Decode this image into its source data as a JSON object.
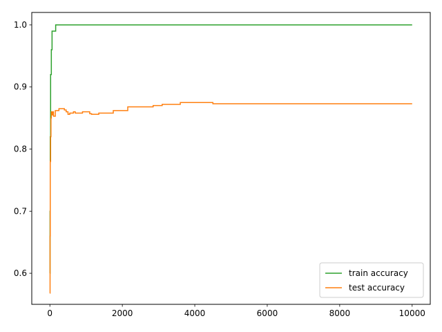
{
  "chart_data": {
    "type": "line",
    "title": "",
    "xlabel": "",
    "ylabel": "",
    "xlim": [
      -500,
      10500
    ],
    "ylim": [
      0.55,
      1.02
    ],
    "xticks": [
      0,
      2000,
      4000,
      6000,
      8000,
      10000
    ],
    "xtick_labels": [
      "0",
      "2000",
      "4000",
      "6000",
      "8000",
      "10000"
    ],
    "yticks": [
      0.6,
      0.7,
      0.8,
      0.9,
      1.0
    ],
    "ytick_labels": [
      "0.6",
      "0.7",
      "0.8",
      "0.9",
      "1.0"
    ],
    "grid": false,
    "legend_position": "lower-right",
    "series": [
      {
        "name": "train accuracy",
        "color": "#2ca02c",
        "step": true,
        "points": [
          [
            0,
            0.6
          ],
          [
            5,
            0.7
          ],
          [
            10,
            0.82
          ],
          [
            20,
            0.92
          ],
          [
            40,
            0.96
          ],
          [
            60,
            0.99
          ],
          [
            150,
            0.99
          ],
          [
            160,
            1.0
          ],
          [
            10000,
            1.0
          ]
        ]
      },
      {
        "name": "test accuracy",
        "color": "#ff7f0e",
        "step": true,
        "points": [
          [
            0,
            0.568
          ],
          [
            5,
            0.66
          ],
          [
            10,
            0.78
          ],
          [
            20,
            0.82
          ],
          [
            30,
            0.85
          ],
          [
            40,
            0.86
          ],
          [
            60,
            0.855
          ],
          [
            80,
            0.86
          ],
          [
            100,
            0.853
          ],
          [
            150,
            0.862
          ],
          [
            250,
            0.865
          ],
          [
            350,
            0.865
          ],
          [
            400,
            0.863
          ],
          [
            450,
            0.86
          ],
          [
            500,
            0.856
          ],
          [
            550,
            0.858
          ],
          [
            650,
            0.86
          ],
          [
            700,
            0.858
          ],
          [
            900,
            0.86
          ],
          [
            1100,
            0.857
          ],
          [
            1150,
            0.856
          ],
          [
            1350,
            0.858
          ],
          [
            1750,
            0.862
          ],
          [
            2150,
            0.868
          ],
          [
            2850,
            0.87
          ],
          [
            3100,
            0.872
          ],
          [
            3600,
            0.875
          ],
          [
            4500,
            0.873
          ],
          [
            10000,
            0.873
          ]
        ]
      }
    ]
  }
}
